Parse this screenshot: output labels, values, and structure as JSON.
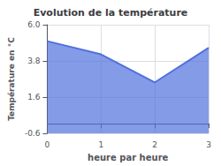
{
  "chart_data": {
    "type": "area",
    "title": "Evolution de la température",
    "xlabel": "heure par heure",
    "ylabel": "Température en °C",
    "x": [
      0,
      1,
      2,
      3
    ],
    "values": [
      5.0,
      4.2,
      2.5,
      4.6
    ],
    "xlim": [
      0,
      3
    ],
    "xticks": [
      0,
      1,
      2,
      3
    ],
    "ylim": [
      -0.6,
      6.0
    ],
    "yticks": [
      -0.6,
      1.6,
      3.8,
      {
        "value": 6.0,
        "label": "6.0"
      }
    ],
    "grid": true
  }
}
